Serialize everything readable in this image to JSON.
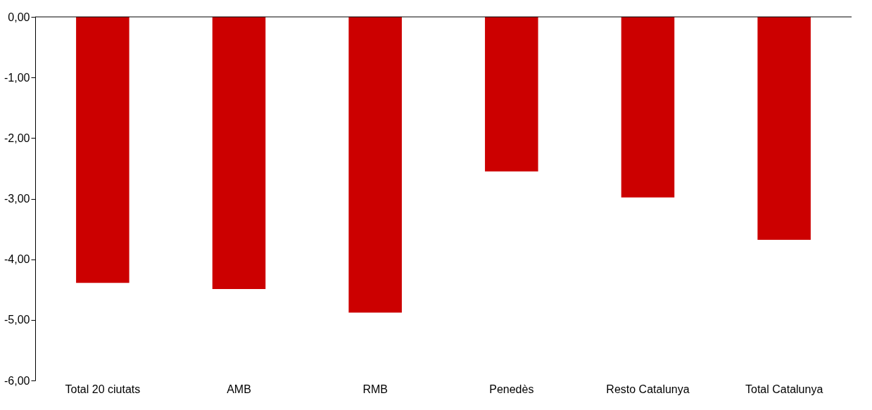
{
  "chart_data": {
    "type": "bar",
    "categories": [
      "Total 20 ciutats",
      "AMB",
      "RMB",
      "Penedès",
      "Resto Catalunya",
      "Total Catalunya"
    ],
    "values": [
      -4.39,
      -4.49,
      -4.88,
      -2.55,
      -2.98,
      -3.68
    ],
    "color": "#cc0000",
    "ylim": [
      -6,
      0
    ],
    "yticks": [
      {
        "value": 0,
        "label": "0,00"
      },
      {
        "value": -1,
        "label": "-1,00"
      },
      {
        "value": -2,
        "label": "-2,00"
      },
      {
        "value": -3,
        "label": "-3,00"
      },
      {
        "value": -4,
        "label": "-4,00"
      },
      {
        "value": -5,
        "label": "-5,00"
      },
      {
        "value": -6,
        "label": "-6,00"
      }
    ],
    "grid": false
  }
}
